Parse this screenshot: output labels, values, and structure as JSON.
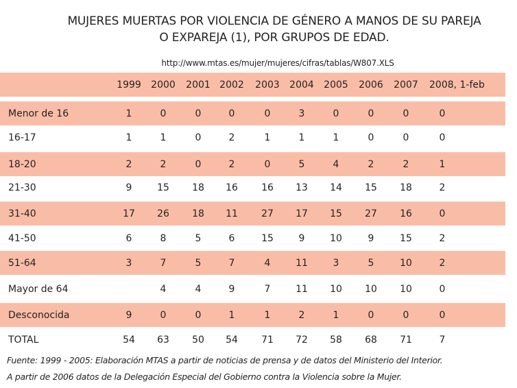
{
  "title_line1": "MUJERES MUERTAS POR VIOLENCIA DE GÉNERO A MANOS DE SU PAREJA",
  "title_line2": "O EXPAREJA (1), POR GRUPOS DE EDAD.",
  "url": "http://www.mtas.es/mujer/mujeres/cifras/tablas/W807.XLS",
  "headers": [
    "1999",
    "2000",
    "2001",
    "2002",
    "2003",
    "2004",
    "2005",
    "2006",
    "2007",
    "2008, 1-feb"
  ],
  "rows": [
    {
      "label": "Menor de 16",
      "values": [
        "1",
        "0",
        "0",
        "0",
        "0",
        "3",
        "0",
        "0",
        "0",
        "0"
      ]
    },
    {
      "label": "16-17",
      "values": [
        "1",
        "1",
        "0",
        "2",
        "1",
        "1",
        "1",
        "0",
        "0",
        "0"
      ]
    },
    {
      "label": "18-20",
      "values": [
        "2",
        "2",
        "0",
        "2",
        "0",
        "5",
        "4",
        "2",
        "2",
        "1"
      ]
    },
    {
      "label": "21-30",
      "values": [
        "9",
        "15",
        "18",
        "16",
        "16",
        "13",
        "14",
        "15",
        "18",
        "2"
      ]
    },
    {
      "label": "31-40",
      "values": [
        "17",
        "26",
        "18",
        "11",
        "27",
        "17",
        "15",
        "27",
        "16",
        "0"
      ]
    },
    {
      "label": "41-50",
      "values": [
        "6",
        "8",
        "5",
        "6",
        "15",
        "9",
        "10",
        "9",
        "15",
        "2"
      ]
    },
    {
      "label": "51-64",
      "values": [
        "3",
        "7",
        "5",
        "7",
        "4",
        "11",
        "3",
        "5",
        "10",
        "2"
      ]
    },
    {
      "label": "Mayor de 64",
      "values": [
        "",
        "4",
        "4",
        "9",
        "7",
        "11",
        "10",
        "10",
        "10",
        "0"
      ]
    },
    {
      "label": "Desconocida",
      "values": [
        "9",
        "0",
        "0",
        "1",
        "1",
        "2",
        "1",
        "0",
        "0",
        "0"
      ]
    },
    {
      "label": "TOTAL",
      "values": [
        "54",
        "63",
        "50",
        "54",
        "71",
        "72",
        "58",
        "68",
        "71",
        "7"
      ]
    }
  ],
  "footnote_line1": "Fuente: 1999 - 2005: Elaboración MTAS a partir de noticias de prensa y de datos del Ministerio del Interior.",
  "footnote_line2": "A partir de 2006 datos de la Delegación Especial del Gobierno contra la Violencia sobre la Mujer.",
  "colors": {
    "band": "#f9bda7",
    "text": "#231f20"
  }
}
